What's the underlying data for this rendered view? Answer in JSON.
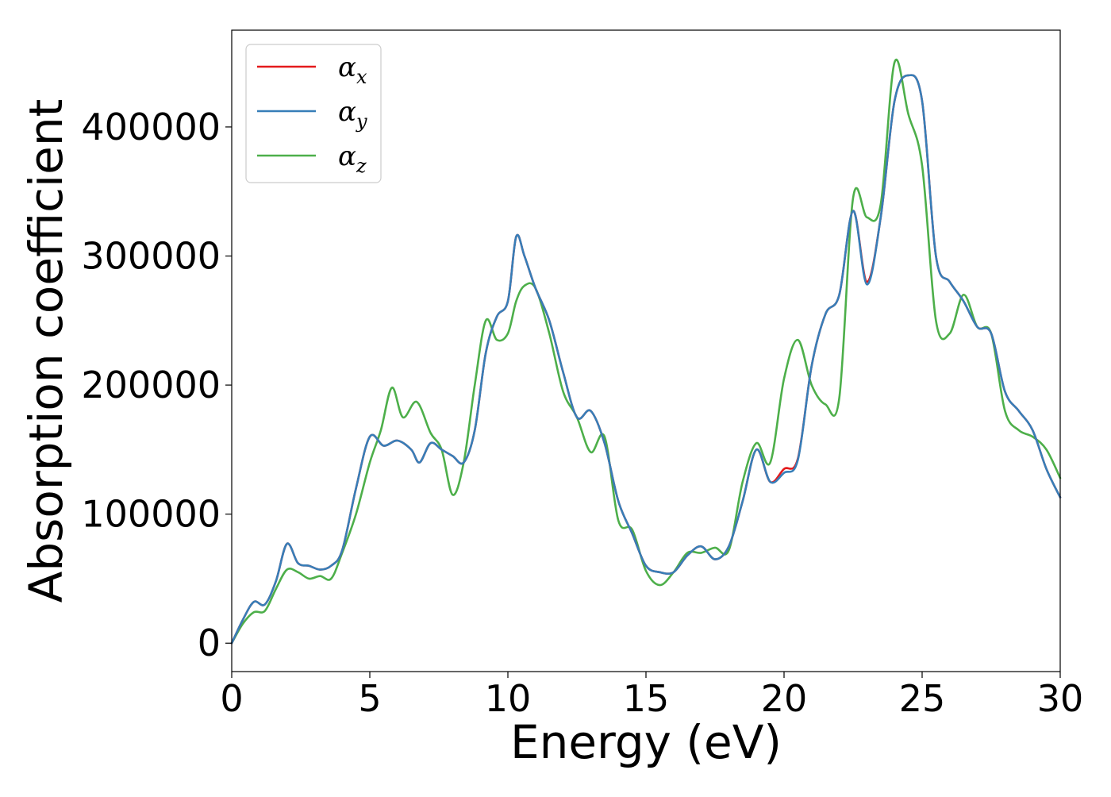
{
  "chart_data": {
    "type": "line",
    "title": "",
    "xlabel": "Energy (eV)",
    "ylabel": "Absorption coefficient",
    "xlim": [
      0,
      30
    ],
    "ylim": [
      -22000,
      475000
    ],
    "xticks": [
      0,
      5,
      10,
      15,
      20,
      25,
      30
    ],
    "yticks": [
      0,
      100000,
      200000,
      300000,
      400000
    ],
    "grid": false,
    "legend": "top-left",
    "series": [
      {
        "name": "αx",
        "legend_base": "α",
        "legend_sub": "x",
        "color": "#e41a1c",
        "x": [
          0,
          0.4,
          0.8,
          1.2,
          1.6,
          2.0,
          2.4,
          2.8,
          3.2,
          3.6,
          4.0,
          4.5,
          5.0,
          5.5,
          6.0,
          6.5,
          6.8,
          7.2,
          7.6,
          8.0,
          8.4,
          8.8,
          9.2,
          9.6,
          10.0,
          10.3,
          10.6,
          11.0,
          11.5,
          12.0,
          12.5,
          13.0,
          13.5,
          14.0,
          14.5,
          15.0,
          15.5,
          16.0,
          16.5,
          17.0,
          17.5,
          18.0,
          18.5,
          19.0,
          19.5,
          20.0,
          20.5,
          21.0,
          21.5,
          22.0,
          22.5,
          23.0,
          23.5,
          24.0,
          24.5,
          25.0,
          25.5,
          26.0,
          26.5,
          27.0,
          27.5,
          28.0,
          28.5,
          29.0,
          29.5,
          30.0
        ],
        "y": [
          0,
          18000,
          32000,
          30000,
          48000,
          77000,
          62000,
          60000,
          57000,
          60000,
          72000,
          120000,
          160000,
          153000,
          157000,
          150000,
          140000,
          155000,
          150000,
          145000,
          140000,
          165000,
          225000,
          253000,
          265000,
          315000,
          300000,
          275000,
          250000,
          210000,
          175000,
          180000,
          155000,
          110000,
          85000,
          60000,
          55000,
          55000,
          68000,
          75000,
          65000,
          75000,
          110000,
          150000,
          125000,
          135000,
          143000,
          215000,
          255000,
          270000,
          335000,
          280000,
          330000,
          420000,
          440000,
          420000,
          300000,
          280000,
          265000,
          245000,
          240000,
          195000,
          180000,
          165000,
          135000,
          113000
        ]
      },
      {
        "name": "αy",
        "legend_base": "α",
        "legend_sub": "y",
        "color": "#377eb8",
        "x": [
          0,
          0.4,
          0.8,
          1.2,
          1.6,
          2.0,
          2.4,
          2.8,
          3.2,
          3.6,
          4.0,
          4.5,
          5.0,
          5.5,
          6.0,
          6.5,
          6.8,
          7.2,
          7.6,
          8.0,
          8.4,
          8.8,
          9.2,
          9.6,
          10.0,
          10.3,
          10.6,
          11.0,
          11.5,
          12.0,
          12.5,
          13.0,
          13.5,
          14.0,
          14.5,
          15.0,
          15.5,
          16.0,
          16.5,
          17.0,
          17.5,
          18.0,
          18.5,
          19.0,
          19.5,
          20.0,
          20.5,
          21.0,
          21.5,
          22.0,
          22.5,
          23.0,
          23.5,
          24.0,
          24.5,
          25.0,
          25.5,
          26.0,
          26.5,
          27.0,
          27.5,
          28.0,
          28.5,
          29.0,
          29.5,
          30.0
        ],
        "y": [
          0,
          18000,
          32000,
          30000,
          48000,
          77000,
          62000,
          60000,
          57000,
          60000,
          72000,
          120000,
          160000,
          153000,
          157000,
          150000,
          140000,
          155000,
          150000,
          145000,
          140000,
          165000,
          225000,
          253000,
          265000,
          315000,
          300000,
          275000,
          250000,
          210000,
          175000,
          180000,
          155000,
          110000,
          85000,
          60000,
          55000,
          55000,
          68000,
          75000,
          65000,
          75000,
          110000,
          150000,
          125000,
          132000,
          142000,
          215000,
          255000,
          270000,
          335000,
          278000,
          330000,
          420000,
          440000,
          420000,
          300000,
          280000,
          265000,
          245000,
          240000,
          195000,
          180000,
          165000,
          135000,
          113000
        ]
      },
      {
        "name": "αz",
        "legend_base": "α",
        "legend_sub": "z",
        "color": "#4daf4a",
        "x": [
          0,
          0.4,
          0.8,
          1.2,
          1.6,
          2.0,
          2.4,
          2.8,
          3.2,
          3.6,
          4.0,
          4.5,
          5.0,
          5.4,
          5.8,
          6.2,
          6.7,
          7.2,
          7.6,
          8.0,
          8.4,
          8.8,
          9.2,
          9.6,
          10.0,
          10.3,
          10.6,
          11.0,
          11.5,
          12.0,
          12.5,
          13.0,
          13.5,
          14.0,
          14.5,
          15.0,
          15.5,
          16.0,
          16.5,
          17.0,
          17.5,
          18.0,
          18.5,
          19.0,
          19.5,
          20.0,
          20.5,
          21.0,
          21.5,
          22.0,
          22.5,
          23.0,
          23.5,
          24.0,
          24.5,
          25.0,
          25.5,
          26.0,
          26.5,
          27.0,
          27.5,
          28.0,
          28.5,
          29.0,
          29.5,
          30.0
        ],
        "y": [
          0,
          15000,
          24000,
          25000,
          42000,
          57000,
          55000,
          50000,
          52000,
          50000,
          70000,
          100000,
          140000,
          165000,
          198000,
          175000,
          187000,
          163000,
          150000,
          115000,
          140000,
          200000,
          250000,
          235000,
          240000,
          265000,
          277000,
          275000,
          240000,
          195000,
          175000,
          148000,
          160000,
          95000,
          88000,
          56000,
          45000,
          55000,
          70000,
          70000,
          74000,
          72000,
          125000,
          155000,
          140000,
          205000,
          235000,
          200000,
          185000,
          190000,
          345000,
          330000,
          340000,
          450000,
          410000,
          370000,
          250000,
          240000,
          270000,
          245000,
          240000,
          180000,
          165000,
          160000,
          150000,
          128000
        ]
      }
    ]
  }
}
